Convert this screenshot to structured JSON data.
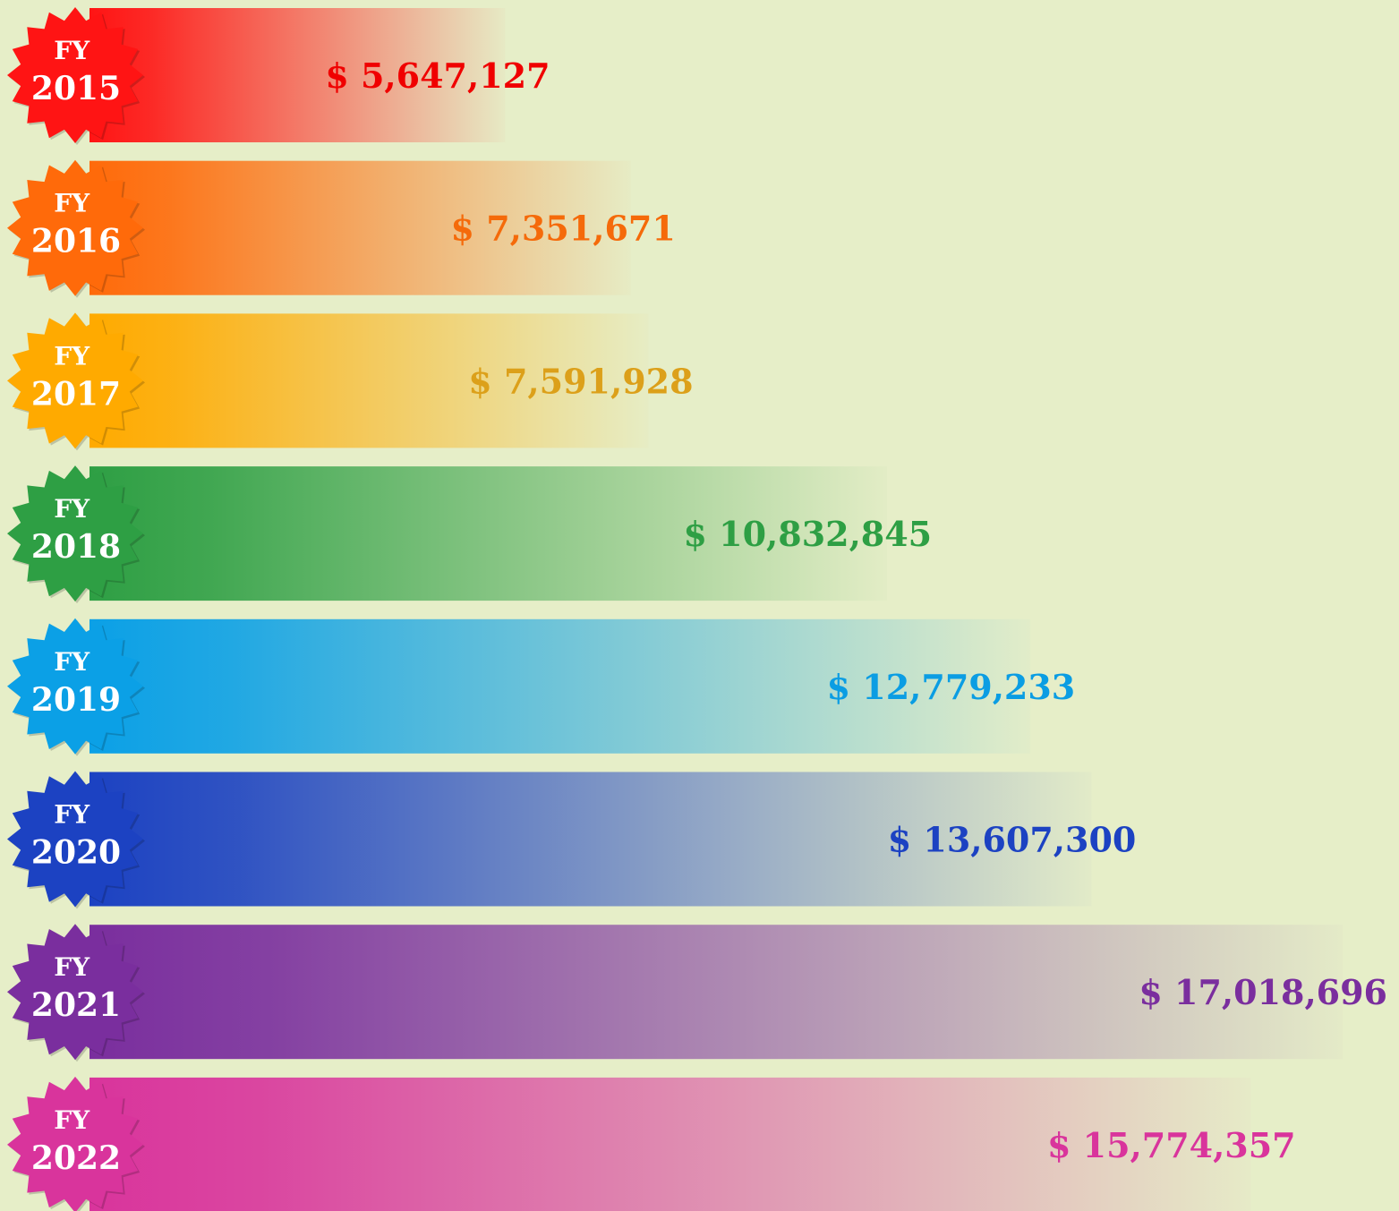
{
  "chart_data": {
    "type": "bar",
    "orientation": "horizontal",
    "categories": [
      "FY 2015",
      "FY 2016",
      "FY 2017",
      "FY 2018",
      "FY 2019",
      "FY 2020",
      "FY 2021",
      "FY 2022"
    ],
    "values": [
      5647127,
      7351671,
      7591928,
      10832845,
      12779233,
      13607300,
      17018696,
      15774357
    ],
    "value_labels": [
      "$ 5,647,127",
      "$ 7,351,671",
      "$ 7,591,928",
      "$ 10,832,845",
      "$ 12,779,233",
      "$ 13,607,300",
      "$ 17,018,696",
      "$ 15,774,357"
    ],
    "colors": [
      "#ff1414",
      "#ff6a0a",
      "#ffaa00",
      "#2e9f44",
      "#0ba0e6",
      "#1c42c2",
      "#7a2e9e",
      "#d9349c"
    ],
    "label_colors": [
      "#f00000",
      "#f56a0a",
      "#dca01a",
      "#2e9f44",
      "#0b9de3",
      "#1c42c2",
      "#7a2e9e",
      "#d9349c"
    ]
  }
}
